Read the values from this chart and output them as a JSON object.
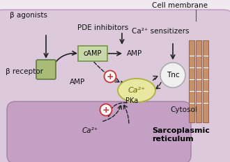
{
  "bg_color": "#f0eaf0",
  "cell_color": "#dccadc",
  "cell_edge": "#c8aac8",
  "sr_color": "#c4a0c4",
  "sr_edge": "#a888a8",
  "camp_box_color": "#c8d8a8",
  "camp_box_edge": "#7a9a50",
  "ca2_ellipse_color": "#e8e8a0",
  "ca2_ellipse_edge": "#b0b040",
  "tnc_circle_color": "#f0f0f0",
  "tnc_circle_edge": "#aaaaaa",
  "receptor_color": "#a8bc78",
  "receptor_edge": "#607840",
  "arrow_color": "#222222",
  "dashed_color": "#222222",
  "plus_circle_edge": "#cc3333",
  "plus_text_color": "#cc3333",
  "label_color": "#111111",
  "bar_color1": "#c89068",
  "bar_color2": "#a06848",
  "bar_color3": "#d0a878",
  "cell_membrane_label": "Cell membrane",
  "cytosol_label": "Cytosol",
  "sr_label1": "Sarcoplasmic",
  "sr_label2": "reticulum",
  "beta_agonists": "β agonists",
  "beta_receptor": "β receptor",
  "camp_label": "cAMP",
  "amp_right": "AMP",
  "amp_left": "AMP",
  "pde_label": "PDE inhibitors",
  "ca2_sensitizers": "Ca²⁺ sensitizers",
  "ca2_label": "Ca²⁺",
  "ca2_sr_label": "Ca²⁺",
  "tnc_label": "Tnc",
  "pka_label": "PKa",
  "figsize": [
    3.3,
    2.33
  ],
  "dpi": 100
}
